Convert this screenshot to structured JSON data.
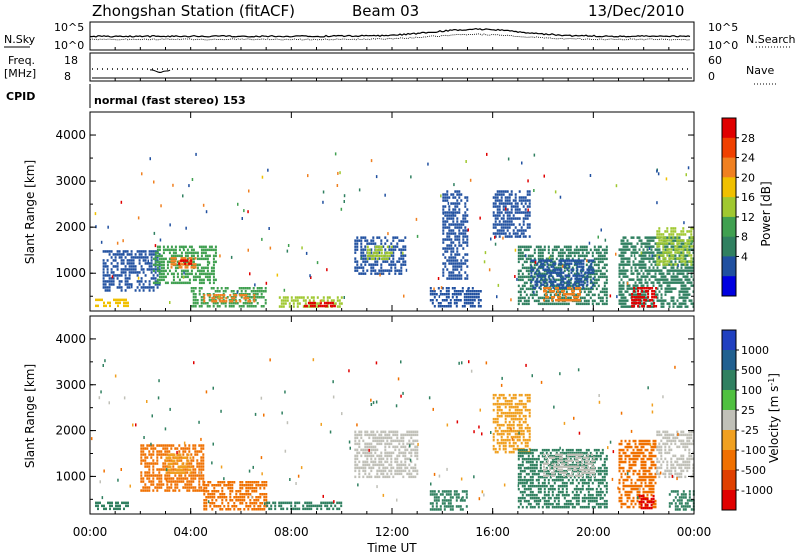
{
  "header": {
    "station": "Zhongshan Station (fitACF)",
    "beam": "Beam 03",
    "date": "13/Dec/2010"
  },
  "panel_top": {
    "left_label": "N.Sky",
    "right_label": "N.Search",
    "left_ticks": [
      "10^5",
      "10^0"
    ],
    "right_ticks": [
      "10^5",
      "10^0"
    ]
  },
  "panel_freq": {
    "left_label_1": "Freq.",
    "left_label_2": "[MHz]",
    "right_label": "Nave",
    "left_ticks": [
      "18",
      "8"
    ],
    "right_ticks": [
      "60",
      "0"
    ]
  },
  "panel_cpid": {
    "label": "CPID",
    "text": "normal (fast stereo) 153"
  },
  "power_panel": {
    "ylabel": "Slant Range [km]",
    "yticks": [
      "4000",
      "3000",
      "2000",
      "1000"
    ],
    "colorbar_label": "Power [dB]",
    "colorbar_ticks": [
      "28",
      "24",
      "20",
      "16",
      "12",
      "8",
      "4"
    ],
    "colorbar_colors": [
      "#e00000",
      "#f04000",
      "#f08020",
      "#f0c000",
      "#a0c830",
      "#40a050",
      "#308060",
      "#2050a0",
      "#0000e0"
    ]
  },
  "velocity_panel": {
    "ylabel": "Slant Range [km]",
    "yticks": [
      "4000",
      "3000",
      "2000",
      "1000"
    ],
    "colorbar_label": "Velocity [m s",
    "colorbar_sup": "-1",
    "colorbar_label_end": "]",
    "colorbar_ticks": [
      "1000",
      "500",
      "100",
      "25",
      "-25",
      "-100",
      "-500",
      "-1000"
    ],
    "colorbar_colors": [
      "#2040c0",
      "#206090",
      "#308060",
      "#50c040",
      "#c0c0b8",
      "#f0a020",
      "#f07000",
      "#e04000",
      "#e00000"
    ]
  },
  "x_axis": {
    "ticks": [
      "00:00",
      "04:00",
      "08:00",
      "12:00",
      "16:00",
      "20:00",
      "00:00"
    ],
    "label": "Time UT"
  },
  "chart_data": {
    "type": "heatmap",
    "x_range_hours": [
      0,
      24
    ],
    "y_range_km": [
      180,
      4500
    ],
    "power_patches": [
      {
        "t": [
          0.2,
          1.5
        ],
        "r": [
          300,
          450
        ],
        "c": "#f0c000"
      },
      {
        "t": [
          0.5,
          2.8
        ],
        "r": [
          600,
          1500
        ],
        "c": "#2050a0"
      },
      {
        "t": [
          2.5,
          5.0
        ],
        "r": [
          800,
          1600
        ],
        "c": "#40a050"
      },
      {
        "t": [
          3.2,
          4.2
        ],
        "r": [
          1100,
          1350
        ],
        "c": "#f08020"
      },
      {
        "t": [
          3.5,
          4.0
        ],
        "r": [
          1200,
          1300
        ],
        "c": "#e00000"
      },
      {
        "t": [
          4.0,
          7.0
        ],
        "r": [
          300,
          700
        ],
        "c": "#40a050"
      },
      {
        "t": [
          4.5,
          6.5
        ],
        "r": [
          400,
          550
        ],
        "c": "#f08020"
      },
      {
        "t": [
          7.5,
          10.0
        ],
        "r": [
          250,
          500
        ],
        "c": "#a0c830"
      },
      {
        "t": [
          8.5,
          9.8
        ],
        "r": [
          280,
          380
        ],
        "c": "#e00000"
      },
      {
        "t": [
          10.5,
          12.5
        ],
        "r": [
          1000,
          1800
        ],
        "c": "#2050a0"
      },
      {
        "t": [
          11.0,
          12.0
        ],
        "r": [
          1300,
          1600
        ],
        "c": "#a0c830"
      },
      {
        "t": [
          13.5,
          15.5
        ],
        "r": [
          300,
          700
        ],
        "c": "#2050a0"
      },
      {
        "t": [
          14.0,
          15.0
        ],
        "r": [
          900,
          2800
        ],
        "c": "#2050a0"
      },
      {
        "t": [
          16.0,
          17.5
        ],
        "r": [
          1800,
          2800
        ],
        "c": "#2050a0"
      },
      {
        "t": [
          17.0,
          20.5
        ],
        "r": [
          300,
          1600
        ],
        "c": "#308060"
      },
      {
        "t": [
          17.5,
          20.0
        ],
        "r": [
          700,
          1300
        ],
        "c": "#2050a0"
      },
      {
        "t": [
          18.0,
          19.5
        ],
        "r": [
          400,
          700
        ],
        "c": "#f08020"
      },
      {
        "t": [
          21.0,
          24.0
        ],
        "r": [
          300,
          1800
        ],
        "c": "#308060"
      },
      {
        "t": [
          21.5,
          22.5
        ],
        "r": [
          300,
          700
        ],
        "c": "#e00000"
      },
      {
        "t": [
          22.5,
          24.0
        ],
        "r": [
          1200,
          2000
        ],
        "c": "#a0c830"
      }
    ],
    "velocity_patches": [
      {
        "t": [
          0.2,
          1.5
        ],
        "r": [
          300,
          450
        ],
        "c": "#308060"
      },
      {
        "t": [
          2.0,
          4.5
        ],
        "r": [
          700,
          1700
        ],
        "c": "#f07000"
      },
      {
        "t": [
          3.0,
          4.0
        ],
        "r": [
          1100,
          1500
        ],
        "c": "#f0a020"
      },
      {
        "t": [
          4.5,
          7.0
        ],
        "r": [
          300,
          900
        ],
        "c": "#f07000"
      },
      {
        "t": [
          7.0,
          10.0
        ],
        "r": [
          300,
          450
        ],
        "c": "#308060"
      },
      {
        "t": [
          10.5,
          13.0
        ],
        "r": [
          1000,
          2000
        ],
        "c": "#c0c0b8"
      },
      {
        "t": [
          13.5,
          15.0
        ],
        "r": [
          300,
          700
        ],
        "c": "#308060"
      },
      {
        "t": [
          16.0,
          17.5
        ],
        "r": [
          1500,
          2800
        ],
        "c": "#f0a020"
      },
      {
        "t": [
          17.0,
          20.5
        ],
        "r": [
          300,
          1600
        ],
        "c": "#308060"
      },
      {
        "t": [
          18.0,
          20.0
        ],
        "r": [
          1000,
          1500
        ],
        "c": "#c0c0b8"
      },
      {
        "t": [
          21.0,
          22.5
        ],
        "r": [
          300,
          1800
        ],
        "c": "#f07000"
      },
      {
        "t": [
          21.8,
          22.4
        ],
        "r": [
          300,
          600
        ],
        "c": "#e00000"
      },
      {
        "t": [
          22.5,
          24.0
        ],
        "r": [
          1000,
          2000
        ],
        "c": "#c0c0b8"
      },
      {
        "t": [
          23.0,
          24.0
        ],
        "r": [
          300,
          700
        ],
        "c": "#308060"
      }
    ]
  }
}
